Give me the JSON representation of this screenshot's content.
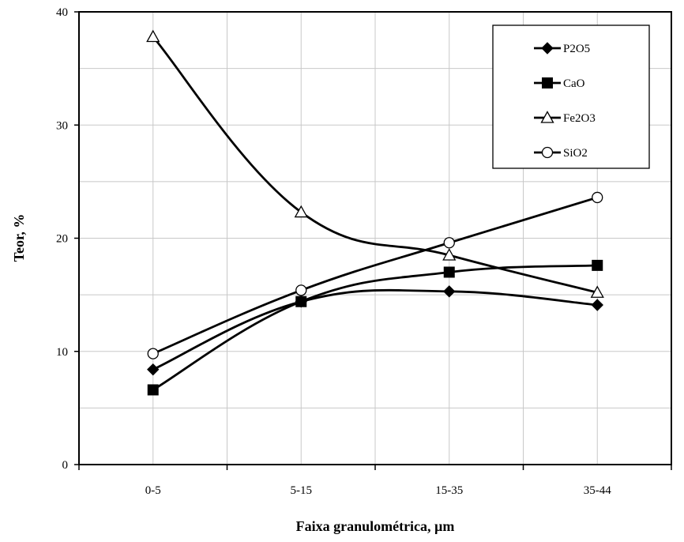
{
  "chart_data": {
    "type": "line",
    "title": "",
    "xlabel": "Faixa granulométrica, µm",
    "ylabel": "Teor, %",
    "categories": [
      "0-5",
      "5-15",
      "15-35",
      "35-44"
    ],
    "ylim": [
      0,
      40
    ],
    "yticks": [
      0,
      10,
      20,
      30,
      40
    ],
    "grid": true,
    "legend_position": "top-right",
    "series": [
      {
        "name": "P2O5",
        "marker": "diamond",
        "color": "#000000",
        "values": [
          8.4,
          14.4,
          15.3,
          14.1
        ]
      },
      {
        "name": "CaO",
        "marker": "square",
        "color": "#000000",
        "values": [
          6.6,
          14.4,
          17.0,
          17.6
        ]
      },
      {
        "name": "Fe2O3",
        "marker": "triangle-open",
        "color": "#000000",
        "values": [
          37.8,
          22.3,
          18.5,
          15.2
        ]
      },
      {
        "name": "SiO2",
        "marker": "circle-open",
        "color": "#000000",
        "values": [
          9.8,
          15.4,
          19.6,
          23.6
        ]
      }
    ]
  }
}
